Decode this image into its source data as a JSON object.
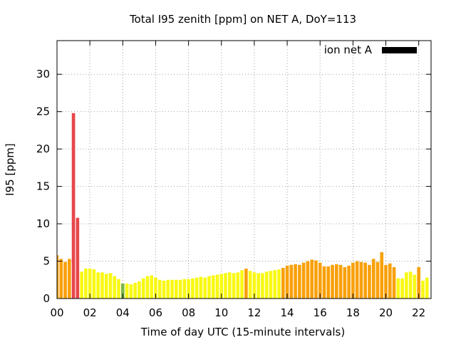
{
  "chart_data": {
    "type": "bar",
    "title": "Total I95 zenith [ppm] on NET A, DoY=113",
    "xlabel": "Time of day UTC (15-minute intervals)",
    "ylabel": "I95 [ppm]",
    "xlim": [
      0,
      22.75
    ],
    "ylim": [
      0,
      34.5
    ],
    "x_tick_labels": [
      "00",
      "02",
      "04",
      "06",
      "08",
      "10",
      "12",
      "14",
      "16",
      "18",
      "20",
      "22"
    ],
    "x_tick_values": [
      0,
      2,
      4,
      6,
      8,
      10,
      12,
      14,
      16,
      18,
      20,
      22
    ],
    "y_tick_values": [
      0,
      5,
      10,
      15,
      20,
      25,
      30
    ],
    "grid": true,
    "legend": {
      "position": "top-right",
      "entries": [
        {
          "label": "ion net A",
          "color": "#000000"
        }
      ]
    },
    "colors": {
      "red": "#e8464a",
      "orange": "#f8a00a",
      "yellow": "#f8f814",
      "green": "#7ab648"
    },
    "bar_interval_hours": 0.25,
    "x": [
      0.0,
      0.25,
      0.5,
      0.75,
      1.0,
      1.25,
      1.5,
      1.75,
      2.0,
      2.25,
      2.5,
      2.75,
      3.0,
      3.25,
      3.5,
      3.75,
      4.0,
      4.25,
      4.5,
      4.75,
      5.0,
      5.25,
      5.5,
      5.75,
      6.0,
      6.25,
      6.5,
      6.75,
      7.0,
      7.25,
      7.5,
      7.75,
      8.0,
      8.25,
      8.5,
      8.75,
      9.0,
      9.25,
      9.5,
      9.75,
      10.0,
      10.25,
      10.5,
      10.75,
      11.0,
      11.25,
      11.5,
      11.75,
      12.0,
      12.25,
      12.5,
      12.75,
      13.0,
      13.25,
      13.5,
      13.75,
      14.0,
      14.25,
      14.5,
      14.75,
      15.0,
      15.25,
      15.5,
      15.75,
      16.0,
      16.25,
      16.5,
      16.75,
      17.0,
      17.25,
      17.5,
      17.75,
      18.0,
      18.25,
      18.5,
      18.75,
      19.0,
      19.25,
      19.5,
      19.75,
      20.0,
      20.25,
      20.5,
      20.75,
      21.0,
      21.25,
      21.5,
      21.75,
      22.0,
      22.25,
      22.5
    ],
    "values": [
      5.8,
      5.3,
      4.9,
      5.3,
      24.8,
      10.8,
      3.6,
      4.0,
      4.0,
      3.9,
      3.5,
      3.5,
      3.3,
      3.4,
      3.0,
      2.6,
      2.0,
      2.0,
      1.9,
      2.1,
      2.3,
      2.7,
      3.0,
      3.1,
      2.8,
      2.5,
      2.4,
      2.5,
      2.5,
      2.5,
      2.5,
      2.6,
      2.6,
      2.7,
      2.8,
      2.9,
      2.8,
      3.0,
      3.1,
      3.2,
      3.3,
      3.4,
      3.5,
      3.4,
      3.5,
      3.8,
      4.0,
      3.7,
      3.5,
      3.4,
      3.4,
      3.6,
      3.7,
      3.8,
      3.9,
      4.1,
      4.4,
      4.5,
      4.6,
      4.5,
      4.8,
      5.0,
      5.2,
      5.1,
      4.8,
      4.3,
      4.3,
      4.5,
      4.6,
      4.5,
      4.2,
      4.4,
      4.8,
      5.0,
      4.9,
      4.8,
      4.5,
      5.3,
      4.9,
      6.2,
      4.5,
      4.7,
      4.2,
      2.7,
      2.7,
      3.5,
      3.6,
      3.2,
      4.2,
      2.4,
      2.8
    ],
    "bar_colors": [
      "orange",
      "orange",
      "orange",
      "orange",
      "red",
      "red",
      "yellow",
      "yellow",
      "yellow",
      "yellow",
      "yellow",
      "yellow",
      "yellow",
      "yellow",
      "yellow",
      "yellow",
      "green",
      "yellow",
      "yellow",
      "yellow",
      "yellow",
      "yellow",
      "yellow",
      "yellow",
      "yellow",
      "yellow",
      "yellow",
      "yellow",
      "yellow",
      "yellow",
      "yellow",
      "yellow",
      "yellow",
      "yellow",
      "yellow",
      "yellow",
      "yellow",
      "yellow",
      "yellow",
      "yellow",
      "yellow",
      "yellow",
      "yellow",
      "yellow",
      "yellow",
      "yellow",
      "orange",
      "yellow",
      "yellow",
      "yellow",
      "yellow",
      "yellow",
      "yellow",
      "yellow",
      "yellow",
      "orange",
      "orange",
      "orange",
      "orange",
      "orange",
      "orange",
      "orange",
      "orange",
      "orange",
      "orange",
      "orange",
      "orange",
      "orange",
      "orange",
      "orange",
      "orange",
      "orange",
      "orange",
      "orange",
      "orange",
      "orange",
      "orange",
      "orange",
      "orange",
      "orange",
      "orange",
      "orange",
      "orange",
      "yellow",
      "yellow",
      "yellow",
      "yellow",
      "yellow",
      "orange",
      "yellow",
      "yellow"
    ]
  }
}
